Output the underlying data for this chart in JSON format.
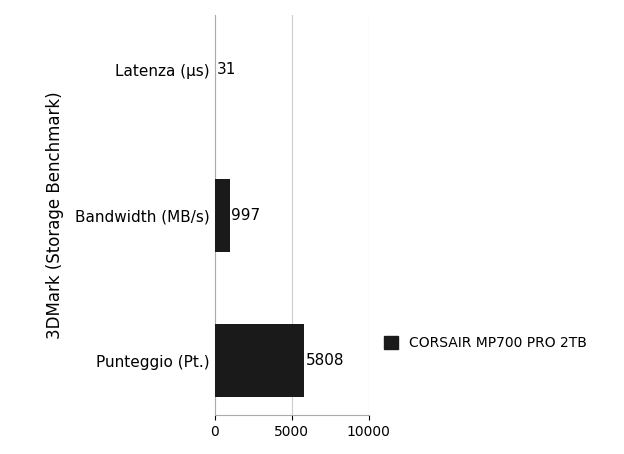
{
  "categories": [
    "Punteggio (Pt.)",
    "Bandwidth (MB/s)",
    "Latenza (μs)"
  ],
  "values": [
    5808,
    997,
    31
  ],
  "bar_color": "#1a1a1a",
  "ylabel": "3DMark (Storage Benchmark)",
  "xlim": [
    0,
    10000
  ],
  "xticks": [
    0,
    5000,
    10000
  ],
  "legend_label": "CORSAIR MP700 PRO 2TB",
  "value_labels": [
    "5808",
    "997",
    "31"
  ],
  "background_color": "#ffffff",
  "bar_height": 0.5,
  "title": "",
  "value_fontsize": 11,
  "label_fontsize": 11,
  "ylabel_fontsize": 12
}
